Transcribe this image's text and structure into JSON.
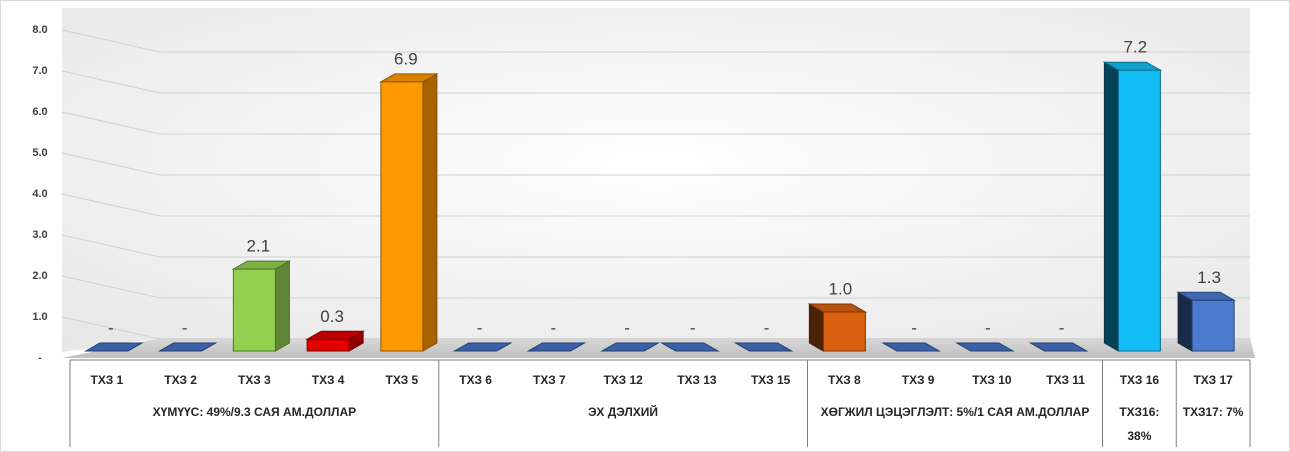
{
  "chart_data": {
    "type": "bar3d",
    "groups": [
      {
        "label": "ХҮМҮҮС: 49%/9.3 САЯ АМ.ДОЛЛАР",
        "categories": [
          "ТХЗ 1",
          "ТХЗ 2",
          "ТХЗ 3",
          "ТХЗ 4",
          "ТХЗ 5"
        ]
      },
      {
        "label": "ЭХ ДЭЛХИЙ",
        "categories": [
          "ТХЗ 6",
          "ТХЗ 7",
          "ТХЗ 12",
          "ТХЗ 13",
          "ТХЗ 15"
        ]
      },
      {
        "label": "ХӨГЖИЛ ЦЭЦЭГЛЭЛТ: 5%/1 САЯ АМ.ДОЛЛАР",
        "categories": [
          "ТХЗ 8",
          "ТХЗ 9",
          "ТХЗ 10",
          "ТХЗ 11"
        ]
      },
      {
        "label": "ТХЗ16: 38%",
        "categories": [
          "ТХЗ 16"
        ]
      },
      {
        "label": "ТХЗ17: 7%",
        "categories": [
          "ТХЗ 17"
        ]
      }
    ],
    "values": [
      0,
      0,
      2.1,
      0.3,
      6.9,
      0,
      0,
      0,
      0,
      0,
      1.0,
      0,
      0,
      0,
      7.2,
      1.3
    ],
    "value_labels": [
      "-",
      "-",
      "2.1",
      "0.3",
      "6.9",
      "-",
      "-",
      "-",
      "-",
      "-",
      "1.0",
      "-",
      "-",
      "-",
      "7.2",
      "1.3"
    ],
    "colors": [
      "#4472c4",
      "#4472c4",
      "#92d050",
      "#e00000",
      "#ff9900",
      "#4472c4",
      "#4472c4",
      "#4472c4",
      "#4472c4",
      "#4472c4",
      "#d9600f",
      "#4472c4",
      "#4472c4",
      "#4472c4",
      "#12bdf5",
      "#4a7bd0"
    ],
    "ylim": [
      0,
      8
    ],
    "yticks": [
      {
        "value": 0,
        "label": "-"
      },
      {
        "value": 1,
        "label": "1.0"
      },
      {
        "value": 2,
        "label": "2.0"
      },
      {
        "value": 3,
        "label": "3.0"
      },
      {
        "value": 4,
        "label": "4.0"
      },
      {
        "value": 5,
        "label": "5.0"
      },
      {
        "value": 6,
        "label": "6.0"
      },
      {
        "value": 7,
        "label": "7.0"
      },
      {
        "value": 8,
        "label": "8.0"
      }
    ],
    "grid": true
  }
}
